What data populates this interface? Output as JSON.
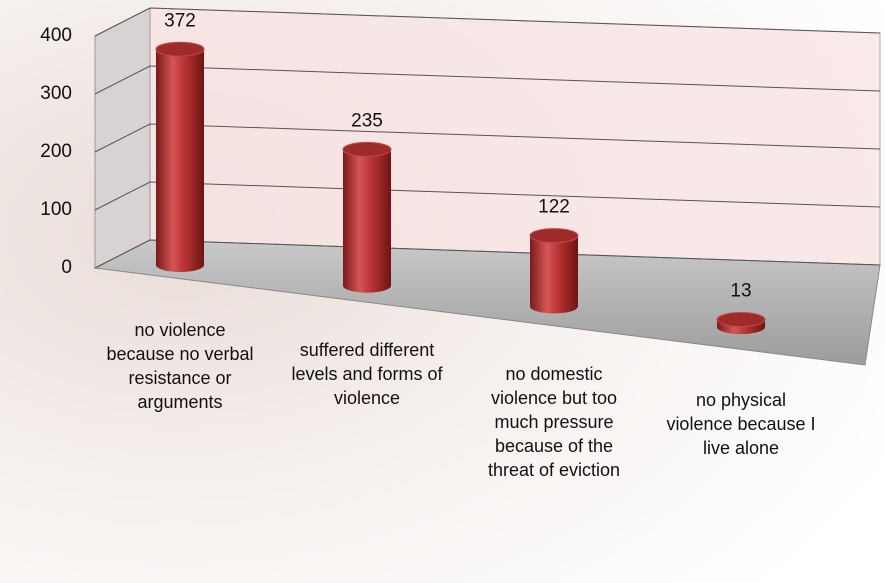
{
  "chart_data": {
    "type": "bar",
    "categories": [
      "no violence because no verbal resistance or arguments",
      "suffered different levels and forms of violence",
      "no domestic violence but too much pressure because of the threat of eviction",
      "no physical violence because I live alone"
    ],
    "values": [
      372,
      235,
      122,
      13
    ],
    "color": "#b83232",
    "ylim": [
      0,
      400
    ],
    "yticks": [
      0,
      100,
      200,
      300,
      400
    ],
    "grid": true
  }
}
